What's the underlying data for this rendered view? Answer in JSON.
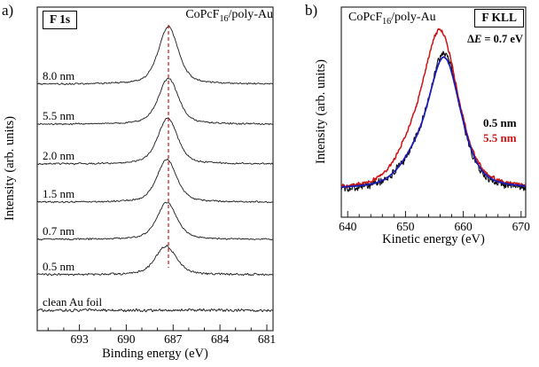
{
  "figure": {
    "background": "#ffffff"
  },
  "chart_data": [
    {
      "type": "line",
      "panel": "a",
      "tag": "a)",
      "region_label": "F 1s",
      "sample_label": {
        "pre": "CoPcF",
        "sub": "16",
        "post": "/poly-Au"
      },
      "xlabel": "Binding energy (eV)",
      "ylabel": "Intensity (arb. units)",
      "x_axis_reversed": true,
      "x_range_eV": [
        695.7,
        680.6
      ],
      "x_ticks": [
        693,
        690,
        687,
        684,
        681
      ],
      "x_minor_tick_step_eV": 1,
      "reference_line": {
        "x_eV": 687.3,
        "color": "#cc0000",
        "style": "dashed"
      },
      "series": [
        {
          "label": "8.0 nm",
          "color": "#1a1a1a",
          "peak_center_eV": 687.3,
          "peak_fwhm_eV": 1.5,
          "peak_height": 0.178,
          "baseline": 0.762,
          "noise": 0.003
        },
        {
          "label": "5.5 nm",
          "color": "#1a1a1a",
          "peak_center_eV": 687.3,
          "peak_fwhm_eV": 1.5,
          "peak_height": 0.142,
          "baseline": 0.638,
          "noise": 0.003
        },
        {
          "label": "2.0 nm",
          "color": "#1a1a1a",
          "peak_center_eV": 687.35,
          "peak_fwhm_eV": 1.5,
          "peak_height": 0.142,
          "baseline": 0.515,
          "noise": 0.003
        },
        {
          "label": "1.5 nm",
          "color": "#1a1a1a",
          "peak_center_eV": 687.4,
          "peak_fwhm_eV": 1.5,
          "peak_height": 0.132,
          "baseline": 0.397,
          "noise": 0.003
        },
        {
          "label": "0.7 nm",
          "color": "#1a1a1a",
          "peak_center_eV": 687.4,
          "peak_fwhm_eV": 1.5,
          "peak_height": 0.115,
          "baseline": 0.282,
          "noise": 0.003
        },
        {
          "label": "0.5 nm",
          "color": "#1a1a1a",
          "peak_center_eV": 687.45,
          "peak_fwhm_eV": 1.6,
          "peak_height": 0.088,
          "baseline": 0.173,
          "noise": 0.004
        },
        {
          "label": "clean Au foil",
          "color": "#1a1a1a",
          "peak_center_eV": null,
          "peak_fwhm_eV": null,
          "peak_height": 0,
          "baseline": 0.063,
          "noise": 0.005
        }
      ]
    },
    {
      "type": "line",
      "panel": "b",
      "tag": "b)",
      "region_label": "F KLL",
      "sample_label": {
        "pre": "CoPcF",
        "sub": "16",
        "post": "/poly-Au"
      },
      "annotation": {
        "delta": "Δ",
        "variable": "E",
        "rest": " = 0.7 eV"
      },
      "peak_shift_eV": 0.7,
      "xlabel": "Kinetic energy (eV)",
      "ylabel": "Intensity (arb. units)",
      "x_range_eV": [
        638.9,
        670.8
      ],
      "x_ticks": [
        640,
        650,
        660,
        670
      ],
      "x_minor_tick_step_eV": 2,
      "series": [
        {
          "label": "0.5 nm",
          "color": "#000000",
          "peak_center_eV": 656.7,
          "peak_fwhm_eV": 6.6,
          "peak_height": 0.645,
          "baseline": 0.127,
          "noise": 0.024,
          "shoulder": {
            "center_eV": 651.0,
            "fwhm_eV": 6.0,
            "height": 0.085
          },
          "stroke_width": 1
        },
        {
          "label": "5.5 nm",
          "color": "#cc1414",
          "peak_center_eV": 656.0,
          "peak_fwhm_eV": 7.4,
          "peak_height": 0.75,
          "baseline": 0.127,
          "noise": 0.01,
          "shoulder": {
            "center_eV": 650.2,
            "fwhm_eV": 6.0,
            "height": 0.1
          },
          "stroke_width": 1.5
        },
        {
          "label": "0.5 nm",
          "color": "#1c1cb4",
          "peak_center_eV": 656.7,
          "peak_fwhm_eV": 6.8,
          "peak_height": 0.62,
          "baseline": 0.13,
          "noise": 0.002,
          "shoulder": {
            "center_eV": 651.0,
            "fwhm_eV": 6.0,
            "height": 0.08
          },
          "stroke_width": 1.8
        }
      ],
      "legend": [
        {
          "label": "0.5 nm",
          "color": "#000000"
        },
        {
          "label": "5.5 nm",
          "color": "#cc1414"
        }
      ]
    }
  ]
}
